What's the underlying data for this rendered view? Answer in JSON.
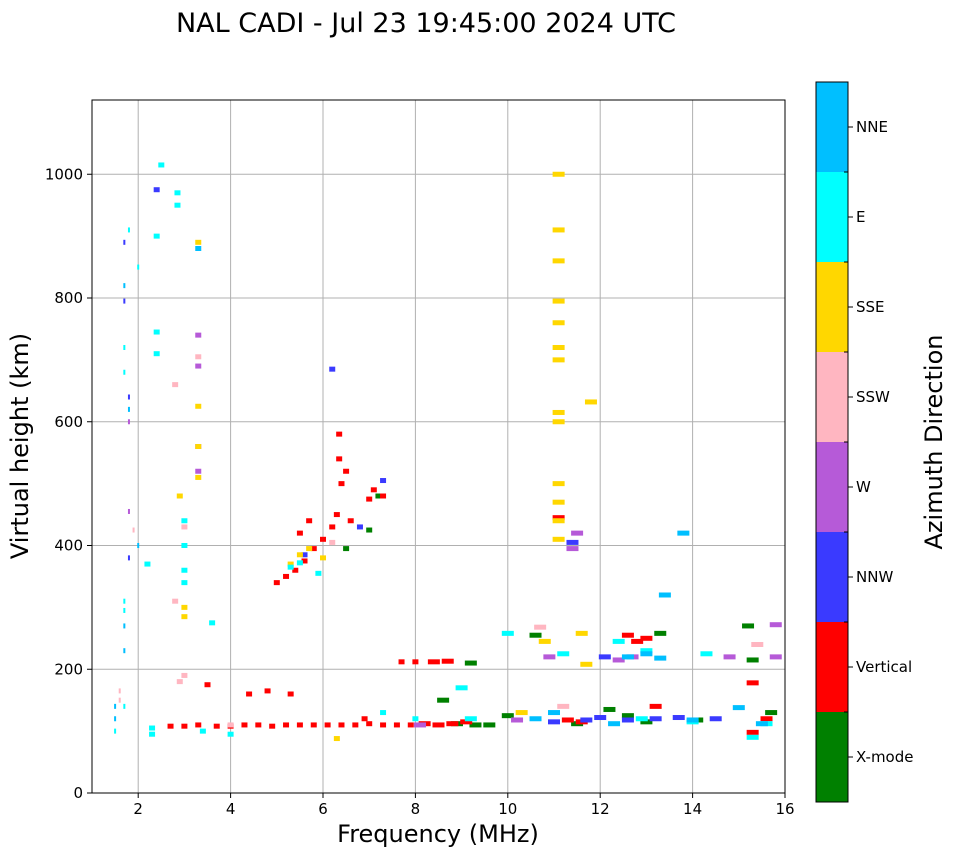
{
  "chart_data": {
    "type": "scatter",
    "title": "NAL CADI - Jul 23 19:45:00 2024 UTC",
    "xlabel": "Frequency (MHz)",
    "ylabel": "Virtual height (km)",
    "xlim": [
      1,
      16
    ],
    "ylim": [
      0,
      1120
    ],
    "xticks": [
      2,
      4,
      6,
      8,
      10,
      12,
      14,
      16
    ],
    "xtick_labels": [
      "2",
      "4",
      "6",
      "8",
      "10",
      "12",
      "14",
      "16"
    ],
    "yticks": [
      0,
      200,
      400,
      600,
      800,
      1000
    ],
    "ytick_labels": [
      "0",
      "200",
      "400",
      "600",
      "800",
      "1000"
    ],
    "grid": true,
    "colorbar": {
      "label": "Azimuth Direction",
      "categories": [
        "X-mode",
        "Vertical",
        "NNW",
        "W",
        "SSW",
        "SSE",
        "E",
        "NNE"
      ],
      "colors": [
        "#008000",
        "#ff0000",
        "#3a3aff",
        "#b65ad8",
        "#ffb6c1",
        "#ffd700",
        "#00ffff",
        "#00bfff"
      ]
    },
    "series": [
      {
        "name": "X-mode",
        "points": [
          [
            6.5,
            395
          ],
          [
            7.2,
            480
          ],
          [
            7.0,
            425
          ],
          [
            8.6,
            150
          ],
          [
            9.2,
            210
          ],
          [
            9.6,
            110
          ],
          [
            10.0,
            125
          ],
          [
            11.5,
            112
          ],
          [
            12.6,
            125
          ],
          [
            13.0,
            115
          ],
          [
            13.3,
            258
          ],
          [
            15.7,
            130
          ],
          [
            15.2,
            270
          ],
          [
            15.3,
            215
          ],
          [
            10.6,
            255
          ],
          [
            9.3,
            110
          ],
          [
            8.9,
            112
          ],
          [
            12.2,
            135
          ],
          [
            14.1,
            118
          ]
        ]
      },
      {
        "name": "Vertical",
        "points": [
          [
            2.7,
            108
          ],
          [
            3.0,
            108
          ],
          [
            3.3,
            110
          ],
          [
            3.7,
            108
          ],
          [
            4.0,
            108
          ],
          [
            4.3,
            110
          ],
          [
            4.6,
            110
          ],
          [
            4.9,
            108
          ],
          [
            5.2,
            110
          ],
          [
            5.5,
            110
          ],
          [
            5.8,
            110
          ],
          [
            6.1,
            110
          ],
          [
            6.4,
            110
          ],
          [
            6.7,
            110
          ],
          [
            7.0,
            112
          ],
          [
            7.3,
            110
          ],
          [
            7.6,
            110
          ],
          [
            7.9,
            110
          ],
          [
            8.2,
            112
          ],
          [
            8.5,
            110
          ],
          [
            8.8,
            112
          ],
          [
            9.1,
            115
          ],
          [
            11.3,
            118
          ],
          [
            11.6,
            115
          ],
          [
            13.2,
            140
          ],
          [
            15.3,
            178
          ],
          [
            15.3,
            98
          ],
          [
            15.6,
            120
          ],
          [
            5.0,
            340
          ],
          [
            5.2,
            350
          ],
          [
            5.4,
            360
          ],
          [
            5.6,
            375
          ],
          [
            5.8,
            395
          ],
          [
            6.0,
            410
          ],
          [
            6.2,
            430
          ],
          [
            6.3,
            450
          ],
          [
            6.4,
            500
          ],
          [
            6.35,
            540
          ],
          [
            6.35,
            580
          ],
          [
            6.5,
            520
          ],
          [
            7.0,
            475
          ],
          [
            7.1,
            490
          ],
          [
            7.3,
            480
          ],
          [
            5.5,
            420
          ],
          [
            5.7,
            440
          ],
          [
            6.6,
            440
          ],
          [
            7.7,
            212
          ],
          [
            8.0,
            212
          ],
          [
            8.4,
            212
          ],
          [
            8.7,
            213
          ],
          [
            11.1,
            445
          ],
          [
            4.4,
            160
          ],
          [
            4.8,
            165
          ],
          [
            5.3,
            160
          ],
          [
            3.5,
            175
          ],
          [
            6.9,
            120
          ],
          [
            12.8,
            245
          ],
          [
            12.6,
            255
          ],
          [
            13.0,
            250
          ]
        ]
      },
      {
        "name": "NNW",
        "points": [
          [
            2.4,
            975
          ],
          [
            6.2,
            685
          ],
          [
            7.3,
            505
          ],
          [
            11.0,
            115
          ],
          [
            11.7,
            118
          ],
          [
            12.0,
            122
          ],
          [
            12.6,
            118
          ],
          [
            13.2,
            120
          ],
          [
            13.7,
            122
          ],
          [
            14.5,
            120
          ],
          [
            11.4,
            405
          ],
          [
            1.8,
            640
          ],
          [
            1.8,
            380
          ],
          [
            1.7,
            795
          ],
          [
            1.7,
            890
          ],
          [
            12.1,
            220
          ],
          [
            6.8,
            430
          ],
          [
            5.6,
            385
          ]
        ]
      },
      {
        "name": "W",
        "points": [
          [
            1.8,
            455
          ],
          [
            1.8,
            600
          ],
          [
            3.3,
            560
          ],
          [
            3.3,
            690
          ],
          [
            3.3,
            740
          ],
          [
            3.3,
            520
          ],
          [
            11.4,
            395
          ],
          [
            11.5,
            420
          ],
          [
            12.7,
            220
          ],
          [
            14.8,
            220
          ],
          [
            15.8,
            272
          ],
          [
            15.8,
            220
          ],
          [
            12.4,
            215
          ],
          [
            10.2,
            118
          ],
          [
            10.9,
            220
          ],
          [
            8.1,
            110
          ]
        ]
      },
      {
        "name": "SSW",
        "points": [
          [
            1.6,
            150
          ],
          [
            1.6,
            165
          ],
          [
            2.9,
            180
          ],
          [
            3.0,
            190
          ],
          [
            2.8,
            310
          ],
          [
            3.0,
            430
          ],
          [
            1.9,
            425
          ],
          [
            2.8,
            660
          ],
          [
            10.7,
            268
          ],
          [
            11.2,
            140
          ],
          [
            15.4,
            240
          ],
          [
            4.0,
            110
          ],
          [
            3.3,
            705
          ],
          [
            6.2,
            405
          ]
        ]
      },
      {
        "name": "SSE",
        "points": [
          [
            11.1,
            1000
          ],
          [
            11.1,
            910
          ],
          [
            11.1,
            860
          ],
          [
            11.1,
            795
          ],
          [
            11.1,
            760
          ],
          [
            11.1,
            720
          ],
          [
            11.1,
            700
          ],
          [
            11.1,
            615
          ],
          [
            11.1,
            600
          ],
          [
            11.1,
            500
          ],
          [
            11.1,
            470
          ],
          [
            11.1,
            440
          ],
          [
            11.1,
            410
          ],
          [
            11.8,
            632
          ],
          [
            3.3,
            890
          ],
          [
            3.3,
            625
          ],
          [
            3.3,
            560
          ],
          [
            3.3,
            510
          ],
          [
            3.0,
            300
          ],
          [
            3.0,
            285
          ],
          [
            2.9,
            480
          ],
          [
            5.5,
            385
          ],
          [
            5.7,
            395
          ],
          [
            5.3,
            370
          ],
          [
            6.0,
            380
          ],
          [
            11.6,
            258
          ],
          [
            10.8,
            245
          ],
          [
            10.3,
            130
          ],
          [
            11.7,
            208
          ],
          [
            6.3,
            88
          ]
        ]
      },
      {
        "name": "E",
        "points": [
          [
            2.0,
            850
          ],
          [
            1.8,
            910
          ],
          [
            1.7,
            720
          ],
          [
            1.7,
            680
          ],
          [
            2.4,
            745
          ],
          [
            2.4,
            710
          ],
          [
            2.5,
            1015
          ],
          [
            2.4,
            900
          ],
          [
            2.85,
            970
          ],
          [
            2.85,
            950
          ],
          [
            3.0,
            440
          ],
          [
            3.0,
            400
          ],
          [
            3.0,
            360
          ],
          [
            3.0,
            340
          ],
          [
            1.7,
            310
          ],
          [
            1.7,
            295
          ],
          [
            2.2,
            370
          ],
          [
            3.6,
            275
          ],
          [
            3.4,
            100
          ],
          [
            4.0,
            95
          ],
          [
            2.3,
            95
          ],
          [
            1.5,
            100
          ],
          [
            7.3,
            130
          ],
          [
            8.0,
            120
          ],
          [
            9.0,
            170
          ],
          [
            9.2,
            120
          ],
          [
            10.0,
            258
          ],
          [
            11.2,
            225
          ],
          [
            12.4,
            245
          ],
          [
            13.0,
            230
          ],
          [
            15.3,
            90
          ],
          [
            14.3,
            225
          ],
          [
            14.0,
            115
          ],
          [
            15.6,
            112
          ],
          [
            12.9,
            120
          ],
          [
            5.3,
            365
          ],
          [
            5.5,
            372
          ],
          [
            5.9,
            355
          ],
          [
            1.7,
            140
          ],
          [
            2.3,
            105
          ]
        ]
      },
      {
        "name": "NNE",
        "points": [
          [
            1.8,
            620
          ],
          [
            1.7,
            820
          ],
          [
            1.7,
            270
          ],
          [
            1.7,
            230
          ],
          [
            1.5,
            120
          ],
          [
            1.5,
            140
          ],
          [
            2.0,
            400
          ],
          [
            13.4,
            320
          ],
          [
            13.8,
            420
          ],
          [
            12.6,
            220
          ],
          [
            13.3,
            218
          ],
          [
            13.0,
            225
          ],
          [
            15.0,
            138
          ],
          [
            15.5,
            112
          ],
          [
            14.0,
            118
          ],
          [
            12.3,
            112
          ],
          [
            11.0,
            130
          ],
          [
            10.6,
            120
          ],
          [
            3.3,
            880
          ]
        ]
      }
    ]
  }
}
